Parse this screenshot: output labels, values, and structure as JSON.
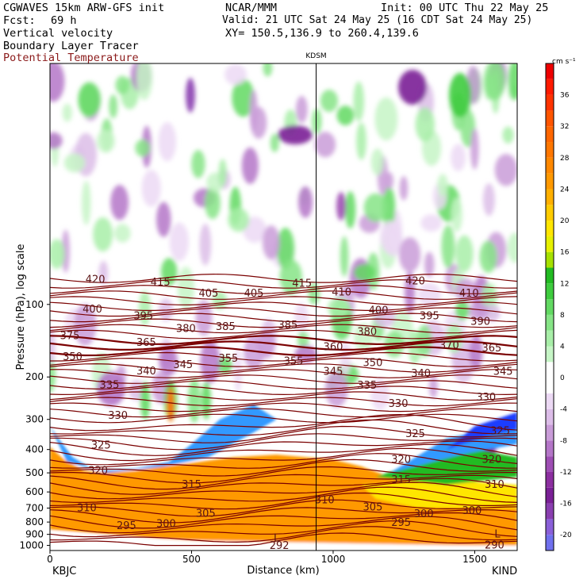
{
  "header": {
    "model": "CGWAVES 15km ARW-GFS init",
    "source": "NCAR/MMM",
    "init": "Init: 00 UTC Thu 22 May 25",
    "fcst_label": "Fcst:",
    "fcst_value": "69 h",
    "valid": "Valid: 21 UTC Sat 24 May 25 (16 CDT Sat 24 May 25)",
    "field1": "Vertical velocity",
    "xy": "XY= 150.5,136.9 to 260.4,139.6",
    "field2": "Boundary Layer Tracer",
    "field3": "Potential Temperature"
  },
  "chart_data": {
    "type": "heatmap",
    "ylabel": "Pressure (hPa), log scale",
    "xlabel": "Distance (km)",
    "xlim": [
      0,
      1650
    ],
    "ylim": [
      1050,
      10
    ],
    "x_ticks": [
      0,
      500,
      1000,
      1500
    ],
    "y_ticks": [
      100,
      200,
      300,
      400,
      500,
      600,
      700,
      800,
      900,
      1000
    ],
    "station_mid": "KDSM",
    "station_left": "KBJC",
    "station_right": "KIND",
    "colorbar": {
      "unit": "cm s⁻¹",
      "tick_labels": [
        "36",
        "32",
        "28",
        "24",
        "20",
        "16",
        "12",
        "8",
        "4",
        "0",
        "-4",
        "-8",
        "-12",
        "-16",
        "-20"
      ],
      "levels": [
        -22,
        -20,
        -18,
        -16,
        -14,
        -12,
        -10,
        -8,
        -6,
        -4,
        -2,
        2,
        4,
        6,
        8,
        10,
        12,
        14,
        16,
        18,
        20,
        22,
        24,
        26,
        28,
        30,
        32,
        34,
        36,
        38,
        40
      ],
      "colors": [
        "#7070ee",
        "#8a5fd8",
        "#8a3fb0",
        "#7a2096",
        "#8c2fa0",
        "#9e4eb4",
        "#b476c8",
        "#c99cd8",
        "#dcbde8",
        "#ecd9f4",
        "#ffffff",
        "#c6f5c6",
        "#a8eea8",
        "#86e486",
        "#62d962",
        "#3ecc3e",
        "#22bb22",
        "#a6e000",
        "#e6f000",
        "#ffe600",
        "#ffcc00",
        "#ffb000",
        "#ff9900",
        "#ff8800",
        "#ff7700",
        "#ff6600",
        "#ff5500",
        "#ff3300",
        "#ff1a00",
        "#ee0000"
      ]
    },
    "theta_labels": [
      {
        "t": "420",
        "x": 160,
        "p": 79
      },
      {
        "t": "415",
        "x": 390,
        "p": 81
      },
      {
        "t": "415",
        "x": 890,
        "p": 82
      },
      {
        "t": "420",
        "x": 1290,
        "p": 80
      },
      {
        "t": "405",
        "x": 560,
        "p": 90
      },
      {
        "t": "405",
        "x": 720,
        "p": 90
      },
      {
        "t": "410",
        "x": 1030,
        "p": 89
      },
      {
        "t": "410",
        "x": 1480,
        "p": 90
      },
      {
        "t": "400",
        "x": 150,
        "p": 105
      },
      {
        "t": "395",
        "x": 330,
        "p": 112
      },
      {
        "t": "380",
        "x": 480,
        "p": 126
      },
      {
        "t": "385",
        "x": 620,
        "p": 124
      },
      {
        "t": "385",
        "x": 840,
        "p": 122
      },
      {
        "t": "400",
        "x": 1160,
        "p": 106
      },
      {
        "t": "395",
        "x": 1340,
        "p": 112
      },
      {
        "t": "390",
        "x": 1520,
        "p": 118
      },
      {
        "t": "375",
        "x": 70,
        "p": 135
      },
      {
        "t": "380",
        "x": 1120,
        "p": 130
      },
      {
        "t": "370",
        "x": 1410,
        "p": 148
      },
      {
        "t": "365",
        "x": 1560,
        "p": 152
      },
      {
        "t": "360",
        "x": 1000,
        "p": 150
      },
      {
        "t": "365",
        "x": 340,
        "p": 144
      },
      {
        "t": "350",
        "x": 80,
        "p": 165
      },
      {
        "t": "355",
        "x": 630,
        "p": 168
      },
      {
        "t": "355",
        "x": 860,
        "p": 172
      },
      {
        "t": "350",
        "x": 1140,
        "p": 175
      },
      {
        "t": "345",
        "x": 470,
        "p": 178
      },
      {
        "t": "345",
        "x": 1000,
        "p": 190
      },
      {
        "t": "345",
        "x": 1600,
        "p": 190
      },
      {
        "t": "340",
        "x": 340,
        "p": 189
      },
      {
        "t": "340",
        "x": 1310,
        "p": 194
      },
      {
        "t": "335",
        "x": 210,
        "p": 216
      },
      {
        "t": "335",
        "x": 1120,
        "p": 217
      },
      {
        "t": "330",
        "x": 1540,
        "p": 243
      },
      {
        "t": "330",
        "x": 1230,
        "p": 258
      },
      {
        "t": "330",
        "x": 240,
        "p": 290
      },
      {
        "t": "325",
        "x": 180,
        "p": 385
      },
      {
        "t": "325",
        "x": 1290,
        "p": 345
      },
      {
        "t": "325",
        "x": 1590,
        "p": 335
      },
      {
        "t": "320",
        "x": 1240,
        "p": 440
      },
      {
        "t": "320",
        "x": 1560,
        "p": 440
      },
      {
        "t": "320",
        "x": 170,
        "p": 490
      },
      {
        "t": "315",
        "x": 500,
        "p": 560
      },
      {
        "t": "315",
        "x": 1240,
        "p": 535
      },
      {
        "t": "310",
        "x": 1570,
        "p": 560
      },
      {
        "t": "310",
        "x": 970,
        "p": 650
      },
      {
        "t": "310",
        "x": 130,
        "p": 700
      },
      {
        "t": "305",
        "x": 550,
        "p": 738
      },
      {
        "t": "305",
        "x": 1140,
        "p": 695
      },
      {
        "t": "300",
        "x": 1320,
        "p": 740
      },
      {
        "t": "300",
        "x": 1490,
        "p": 720
      },
      {
        "t": "300",
        "x": 410,
        "p": 815
      },
      {
        "t": "295",
        "x": 270,
        "p": 830
      },
      {
        "t": "295",
        "x": 1240,
        "p": 805
      },
      {
        "t": "290",
        "x": 1570,
        "p": 1000
      }
    ],
    "extra_labels": [
      {
        "t": "292",
        "x": 810,
        "p": 1005
      },
      {
        "t": "L",
        "x": 800,
        "p": 935
      },
      {
        "t": "L",
        "x": 1580,
        "p": 900
      }
    ]
  }
}
